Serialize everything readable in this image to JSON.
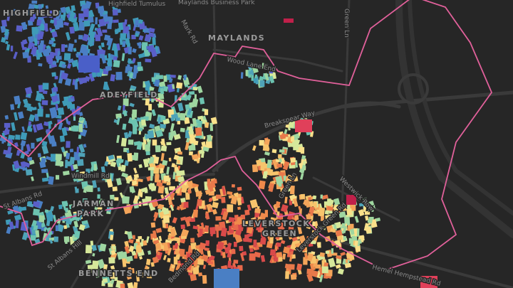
{
  "places": [
    "HIGHFIELD",
    "Highfield Tumulus",
    "Maylands Business Park",
    "MAYLANDS",
    "ADEYFIELD",
    "JARMAN",
    "PARK",
    "LEVERSTOCK",
    "GREEN",
    "BENNETTS END"
  ],
  "roads": [
    "Mark Rd",
    "Green Ln",
    "Wood Lane End",
    "Breakspear Way",
    "Windmill Rd",
    "St Albans Rd",
    "Green Ln",
    "Westwick Row",
    "St Albans Hill",
    "Bedmond Rd",
    "Leverstock Green Rd",
    "Hemel Hempstead Rd"
  ]
}
